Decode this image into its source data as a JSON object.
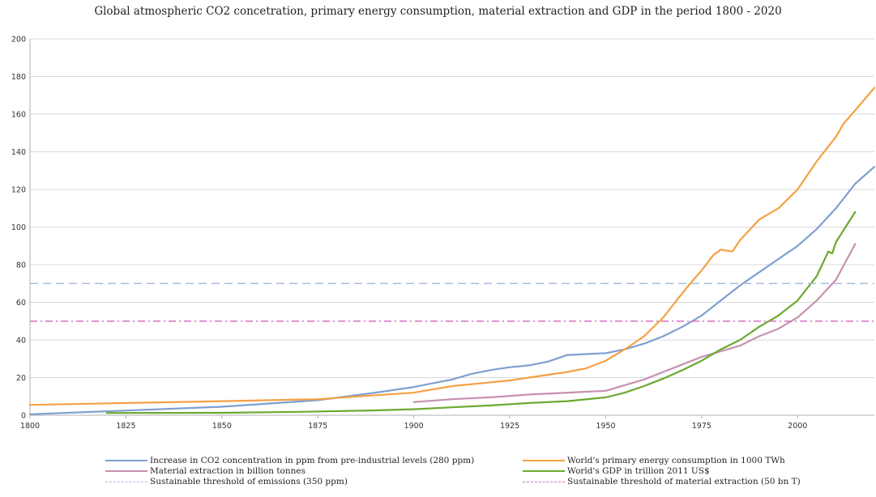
{
  "chart_data": {
    "type": "line",
    "title": "Global atmospheric CO2 concetration, primary energy consumption, material extraction and GDP in the period 1800 - 2020",
    "xlim": [
      1800,
      2020
    ],
    "ylim": [
      0,
      200
    ],
    "x_ticks": [
      1800,
      1825,
      1850,
      1875,
      1900,
      1925,
      1950,
      1975,
      2000
    ],
    "y_ticks": [
      0,
      20,
      40,
      60,
      80,
      100,
      120,
      140,
      160,
      180,
      200
    ],
    "grid": "horizontal",
    "legend_position": "bottom",
    "series": [
      {
        "name": "Increase in CO2 concentration in ppm from pre-industrial levels (280 ppm)",
        "color": "#7f9fd0",
        "style": "solid",
        "x": [
          1800,
          1825,
          1850,
          1875,
          1890,
          1900,
          1910,
          1915,
          1920,
          1925,
          1930,
          1935,
          1940,
          1945,
          1950,
          1955,
          1960,
          1965,
          1970,
          1975,
          1980,
          1985,
          1990,
          1995,
          2000,
          2005,
          2010,
          2015,
          2020
        ],
        "values": [
          0.5,
          2.5,
          4.5,
          8,
          12,
          15,
          19,
          22,
          24,
          25.5,
          26.5,
          28.5,
          32,
          32.5,
          33,
          35,
          38,
          42,
          47,
          53,
          61,
          69,
          76,
          83,
          90,
          99,
          110,
          123,
          132
        ]
      },
      {
        "name": "World's primary energy consumption in 1000 TWh",
        "color": "#f5a044",
        "style": "solid",
        "x": [
          1800,
          1825,
          1850,
          1875,
          1900,
          1910,
          1920,
          1925,
          1930,
          1940,
          1945,
          1950,
          1955,
          1960,
          1965,
          1970,
          1972,
          1975,
          1978,
          1980,
          1983,
          1985,
          1990,
          1995,
          2000,
          2005,
          2010,
          2012,
          2015,
          2020
        ],
        "values": [
          5.5,
          6.5,
          7.5,
          8.5,
          12,
          15.5,
          17.5,
          18.5,
          20,
          23,
          25,
          29,
          35,
          42,
          52,
          65,
          70,
          77,
          85,
          88,
          87,
          93,
          104,
          110,
          120,
          135,
          148,
          155,
          162,
          174
        ]
      },
      {
        "name": "Material extraction in billion tonnes",
        "color": "#c890b0",
        "style": "solid",
        "x": [
          1900,
          1910,
          1920,
          1930,
          1940,
          1950,
          1955,
          1960,
          1965,
          1970,
          1975,
          1980,
          1985,
          1990,
          1995,
          2000,
          2005,
          2010,
          2015
        ],
        "values": [
          7,
          8.5,
          9.5,
          11,
          12,
          13,
          16,
          19,
          23,
          27,
          31,
          34,
          37,
          42,
          46,
          52,
          61,
          72,
          91
        ]
      },
      {
        "name": "World's GDP in trillion 2011 US$",
        "color": "#6aaa30",
        "style": "solid",
        "x": [
          1820,
          1850,
          1870,
          1890,
          1900,
          1910,
          1920,
          1930,
          1940,
          1950,
          1955,
          1960,
          1965,
          1970,
          1975,
          1980,
          1985,
          1990,
          1995,
          2000,
          2005,
          2008,
          2009,
          2010,
          2015
        ],
        "values": [
          1.2,
          1.3,
          1.8,
          2.6,
          3.2,
          4.2,
          5.2,
          6.5,
          7.5,
          9.5,
          12,
          15.5,
          19.5,
          24,
          29,
          35,
          40,
          47,
          53,
          61,
          74,
          87,
          86,
          92,
          108
        ]
      },
      {
        "name": "Sustainable threshold of emissions (350 ppm)",
        "color": "#a8bde0",
        "style": "dashed",
        "x": [
          1800,
          2020
        ],
        "values": [
          70,
          70
        ]
      },
      {
        "name": "Sustainable threshold of material extraction (50 bn T)",
        "color": "#d070c0",
        "style": "dashdot",
        "x": [
          1800,
          2020
        ],
        "values": [
          50,
          50
        ]
      }
    ]
  }
}
